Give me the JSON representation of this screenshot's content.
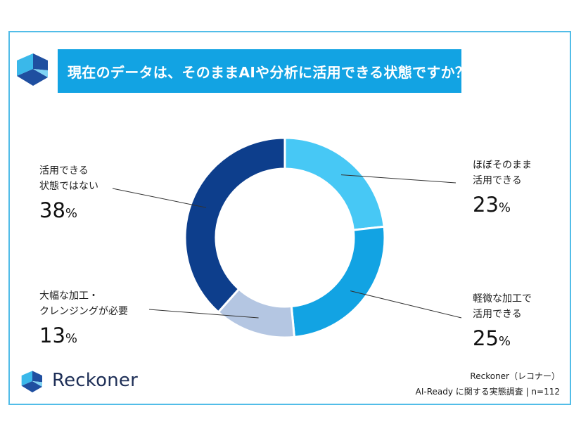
{
  "title": "現在のデータは、そのままAIや分析に活用できる状態ですか？",
  "colors": {
    "frame": "#52bde8",
    "title_bar": "#12a3e3",
    "brand_dark": "#1e2f57",
    "logo_light": "#3ab8ea",
    "logo_dark": "#1f4fa0"
  },
  "chart_data": {
    "type": "pie",
    "donut": true,
    "slices": [
      {
        "label_lines": [
          "ほぼそのまま",
          "活用できる"
        ],
        "value": 23,
        "color": "#47c8f5"
      },
      {
        "label_lines": [
          "軽微な加工で",
          "活用できる"
        ],
        "value": 25,
        "color": "#12a3e3"
      },
      {
        "label_lines": [
          "大幅な加工・",
          "クレンジングが必要"
        ],
        "value": 13,
        "color": "#b4c6e2"
      },
      {
        "label_lines": [
          "活用できる",
          "状態ではない"
        ],
        "value": 38,
        "color": "#0d3e8c"
      }
    ],
    "unit": "%"
  },
  "brand": {
    "name": "Reckoner",
    "logo_icon": "reckoner-logo-icon"
  },
  "source": {
    "line1": "Reckoner（レコナー）",
    "line2": "AI-Ready に関する実態調査 | n=112"
  }
}
